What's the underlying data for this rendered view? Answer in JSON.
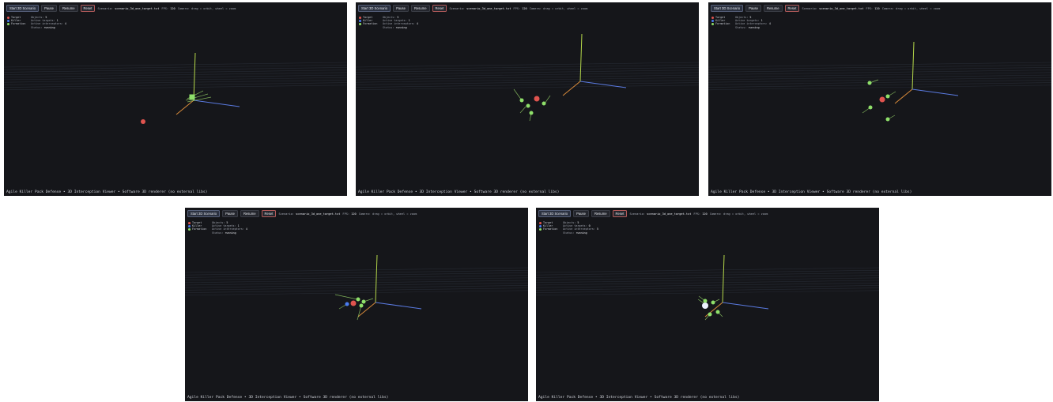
{
  "toolbar": {
    "start_label": "Start 3D Scenario",
    "pause_label": "Pause",
    "resume_label": "Resume",
    "reset_label": "Reset",
    "scenario_label": "Scenario:",
    "scenario_value": "scenario_3d_one_target.txt",
    "fps_label": "FPS:",
    "fps_value": "120",
    "camera_text": "Camera: drag = orbit, wheel = zoom"
  },
  "legend": {
    "target": "Target",
    "killer": "Killer",
    "formation": "Formation",
    "colors": {
      "target": "#e0544f",
      "killer": "#4a7cf0",
      "formation": "#8fe06a"
    }
  },
  "footer_text": "Agile Killer Pack Defense • 3D Interception Viewer • Software 3D renderer (no external libs)",
  "panels": [
    {
      "objects": "5",
      "active_targets": "1",
      "active_interceptors": "4",
      "status": "running"
    },
    {
      "objects": "5",
      "active_targets": "1",
      "active_interceptors": "4",
      "status": "running"
    },
    {
      "objects": "5",
      "active_targets": "1",
      "active_interceptors": "4",
      "status": "running"
    },
    {
      "objects": "5",
      "active_targets": "1",
      "active_interceptors": "4",
      "status": "running"
    },
    {
      "objects": "5",
      "active_targets": "0",
      "active_interceptors": "5",
      "status": "running"
    }
  ],
  "stat_labels": {
    "objects": "Objects:",
    "active_targets": "Active targets:",
    "active_interceptors": "Active interceptors:",
    "status": "Status:"
  }
}
